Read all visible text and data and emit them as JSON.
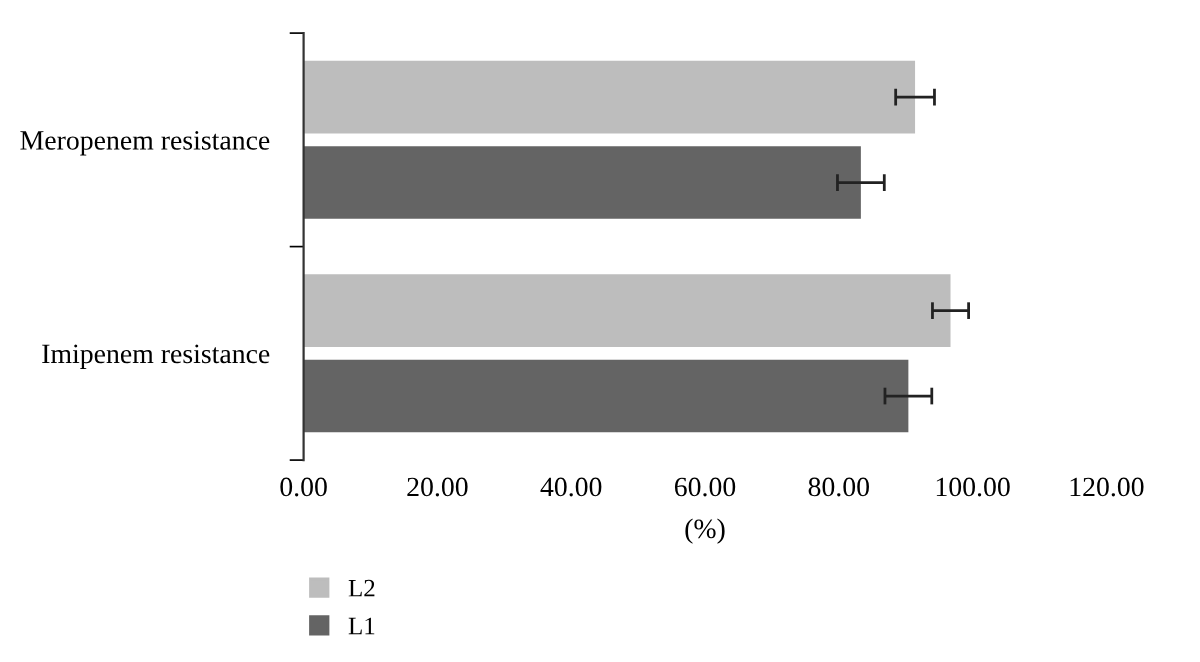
{
  "chart_data": {
    "type": "bar",
    "orientation": "horizontal",
    "categories": [
      "Meropenem resistance",
      "Imipenem resistance"
    ],
    "series": [
      {
        "name": "L2",
        "color": "#bdbdbd",
        "values": [
          91.4,
          96.7
        ],
        "errors": [
          2.9,
          2.7
        ]
      },
      {
        "name": "L1",
        "color": "#646464",
        "values": [
          83.3,
          90.4
        ],
        "errors": [
          3.5,
          3.5
        ]
      }
    ],
    "xlabel": "(%)",
    "xlim": [
      0,
      120
    ],
    "xticks": [
      {
        "value": 0,
        "label": "0.00"
      },
      {
        "value": 20,
        "label": "20.00"
      },
      {
        "value": 40,
        "label": "40.00"
      },
      {
        "value": 60,
        "label": "60.00"
      },
      {
        "value": 80,
        "label": "80.00"
      },
      {
        "value": 100,
        "label": "100.00"
      },
      {
        "value": 120,
        "label": "120.00"
      }
    ],
    "grid": false,
    "legend": "bottom left"
  }
}
